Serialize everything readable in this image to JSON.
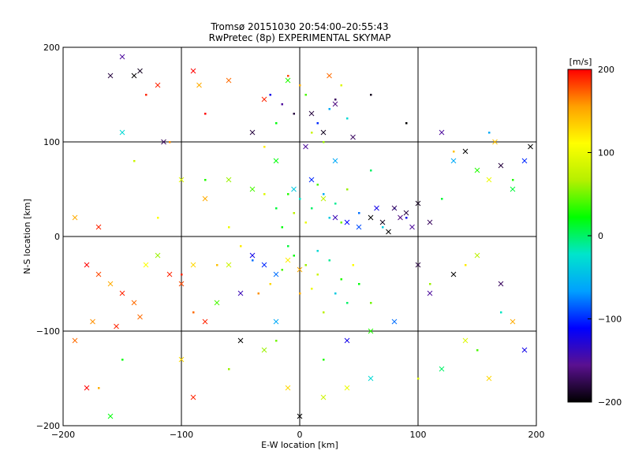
{
  "chart_data": {
    "type": "scatter",
    "title": "Tromsø 20151030 20:54:00–20:55:43",
    "subtitle": "RwPretec (8p) EXPERIMENTAL SKYMAP",
    "xlabel": "E-W location [km]",
    "ylabel": "N-S location [km]",
    "xlim": [
      -200,
      200
    ],
    "ylim": [
      -200,
      200
    ],
    "x_ticks": [
      -200,
      -100,
      0,
      100,
      200
    ],
    "y_ticks": [
      -200,
      -100,
      0,
      100,
      200
    ],
    "x_tick_labels": [
      "−200",
      "−100",
      "0",
      "100",
      "200"
    ],
    "y_tick_labels": [
      "−200",
      "−100",
      "0",
      "100",
      "200"
    ],
    "grid": true,
    "colorbar": {
      "label": "[m/s]",
      "min": -200,
      "max": 200,
      "ticks": [
        200,
        100,
        0,
        -100,
        -200
      ],
      "tick_labels": [
        "200",
        "100",
        "0",
        "−100",
        "−200"
      ],
      "colormap": [
        "#000000",
        "#5a1090",
        "#0000ff",
        "#00a0ff",
        "#00e5cc",
        "#00ff00",
        "#b5f000",
        "#ffff00",
        "#ffa000",
        "#ff0000"
      ]
    },
    "marker_types": [
      "dot",
      "cross"
    ],
    "series": [
      {
        "marker": "dot",
        "points": [
          [
            -15,
            140,
            -150
          ],
          [
            -5,
            130,
            -180
          ],
          [
            5,
            150,
            40
          ],
          [
            15,
            120,
            -100
          ],
          [
            25,
            135,
            -60
          ],
          [
            10,
            110,
            80
          ],
          [
            -20,
            120,
            20
          ],
          [
            30,
            145,
            -170
          ],
          [
            0,
            160,
            150
          ],
          [
            20,
            100,
            60
          ],
          [
            -30,
            95,
            120
          ],
          [
            40,
            125,
            -30
          ],
          [
            -10,
            170,
            180
          ],
          [
            35,
            160,
            90
          ],
          [
            -25,
            150,
            -120
          ],
          [
            -10,
            45,
            30
          ],
          [
            0,
            40,
            -20
          ],
          [
            10,
            30,
            0
          ],
          [
            20,
            45,
            -60
          ],
          [
            -5,
            25,
            70
          ],
          [
            25,
            20,
            -40
          ],
          [
            15,
            55,
            40
          ],
          [
            -20,
            30,
            10
          ],
          [
            5,
            15,
            100
          ],
          [
            30,
            35,
            -10
          ],
          [
            40,
            50,
            60
          ],
          [
            -15,
            10,
            20
          ],
          [
            35,
            15,
            50
          ],
          [
            50,
            25,
            -80
          ],
          [
            -30,
            45,
            90
          ],
          [
            -5,
            -20,
            20
          ],
          [
            5,
            -30,
            60
          ],
          [
            15,
            -40,
            80
          ],
          [
            25,
            -25,
            -10
          ],
          [
            -15,
            -35,
            40
          ],
          [
            10,
            -55,
            100
          ],
          [
            30,
            -60,
            -40
          ],
          [
            -25,
            -50,
            130
          ],
          [
            40,
            -70,
            0
          ],
          [
            20,
            -80,
            70
          ],
          [
            0,
            -60,
            150
          ],
          [
            -10,
            -10,
            10
          ],
          [
            15,
            -15,
            -30
          ],
          [
            35,
            -45,
            30
          ],
          [
            45,
            -30,
            110
          ],
          [
            -40,
            -25,
            -80
          ],
          [
            -50,
            -10,
            120
          ],
          [
            -35,
            -60,
            160
          ],
          [
            50,
            -50,
            20
          ],
          [
            60,
            -70,
            50
          ],
          [
            -60,
            10,
            100
          ],
          [
            -70,
            -30,
            140
          ],
          [
            70,
            10,
            -40
          ],
          [
            80,
            30,
            -90
          ],
          [
            90,
            20,
            -120
          ],
          [
            -80,
            60,
            30
          ],
          [
            60,
            70,
            0
          ],
          [
            -100,
            -40,
            190
          ],
          [
            -90,
            -80,
            170
          ],
          [
            110,
            -50,
            60
          ],
          [
            -120,
            20,
            110
          ],
          [
            120,
            40,
            10
          ],
          [
            130,
            90,
            140
          ],
          [
            -140,
            80,
            80
          ],
          [
            150,
            -120,
            40
          ],
          [
            -150,
            -130,
            20
          ],
          [
            100,
            -150,
            90
          ],
          [
            -60,
            -140,
            60
          ],
          [
            20,
            -130,
            30
          ],
          [
            -20,
            -110,
            50
          ],
          [
            60,
            150,
            -190
          ],
          [
            90,
            120,
            -200
          ],
          [
            -130,
            150,
            190
          ],
          [
            160,
            110,
            -60
          ],
          [
            -170,
            -160,
            150
          ],
          [
            180,
            60,
            30
          ],
          [
            -110,
            100,
            160
          ],
          [
            140,
            -30,
            120
          ],
          [
            -80,
            130,
            200
          ],
          [
            170,
            -80,
            -20
          ]
        ]
      },
      {
        "marker": "cross",
        "points": [
          [
            -160,
            170,
            -180
          ],
          [
            -150,
            190,
            -150
          ],
          [
            -140,
            170,
            -200
          ],
          [
            -135,
            175,
            -190
          ],
          [
            -120,
            160,
            190
          ],
          [
            -115,
            100,
            -170
          ],
          [
            -90,
            175,
            200
          ],
          [
            -85,
            160,
            150
          ],
          [
            -60,
            165,
            170
          ],
          [
            -40,
            110,
            -180
          ],
          [
            10,
            130,
            -180
          ],
          [
            20,
            110,
            -190
          ],
          [
            30,
            140,
            -160
          ],
          [
            45,
            105,
            -170
          ],
          [
            5,
            95,
            -150
          ],
          [
            -10,
            165,
            30
          ],
          [
            25,
            170,
            170
          ],
          [
            -30,
            145,
            190
          ],
          [
            60,
            20,
            -200
          ],
          [
            70,
            15,
            -190
          ],
          [
            80,
            30,
            -170
          ],
          [
            85,
            20,
            -160
          ],
          [
            90,
            25,
            -180
          ],
          [
            95,
            10,
            -150
          ],
          [
            100,
            35,
            -190
          ],
          [
            110,
            15,
            -170
          ],
          [
            75,
            5,
            -200
          ],
          [
            65,
            30,
            -120
          ],
          [
            30,
            20,
            -140
          ],
          [
            40,
            15,
            -110
          ],
          [
            50,
            10,
            -90
          ],
          [
            130,
            80,
            -60
          ],
          [
            140,
            90,
            -200
          ],
          [
            150,
            70,
            30
          ],
          [
            160,
            60,
            100
          ],
          [
            170,
            75,
            -180
          ],
          [
            180,
            50,
            10
          ],
          [
            190,
            80,
            -100
          ],
          [
            195,
            95,
            -200
          ],
          [
            165,
            100,
            140
          ],
          [
            120,
            110,
            -150
          ],
          [
            -180,
            -30,
            200
          ],
          [
            -170,
            -40,
            180
          ],
          [
            -160,
            -50,
            150
          ],
          [
            -150,
            -60,
            190
          ],
          [
            -140,
            -70,
            170
          ],
          [
            -130,
            -30,
            110
          ],
          [
            -120,
            -20,
            60
          ],
          [
            -110,
            -40,
            190
          ],
          [
            -100,
            -50,
            180
          ],
          [
            -90,
            -30,
            130
          ],
          [
            -175,
            -90,
            160
          ],
          [
            -155,
            -95,
            190
          ],
          [
            -135,
            -85,
            170
          ],
          [
            -190,
            20,
            150
          ],
          [
            -170,
            10,
            190
          ],
          [
            -40,
            -20,
            -120
          ],
          [
            -30,
            -30,
            -100
          ],
          [
            -20,
            -40,
            -80
          ],
          [
            -10,
            -25,
            120
          ],
          [
            0,
            -35,
            150
          ],
          [
            -60,
            -30,
            80
          ],
          [
            -50,
            -60,
            -140
          ],
          [
            -70,
            -70,
            40
          ],
          [
            -80,
            -90,
            190
          ],
          [
            -20,
            -90,
            -60
          ],
          [
            -50,
            -110,
            -200
          ],
          [
            -30,
            -120,
            60
          ],
          [
            40,
            -110,
            -120
          ],
          [
            60,
            -100,
            30
          ],
          [
            80,
            -90,
            -80
          ],
          [
            100,
            -30,
            -180
          ],
          [
            110,
            -60,
            -150
          ],
          [
            130,
            -40,
            -200
          ],
          [
            150,
            -20,
            70
          ],
          [
            170,
            -50,
            -170
          ],
          [
            180,
            -90,
            150
          ],
          [
            190,
            -120,
            -120
          ],
          [
            140,
            -110,
            90
          ],
          [
            120,
            -140,
            0
          ],
          [
            160,
            -150,
            130
          ],
          [
            -190,
            -110,
            170
          ],
          [
            -180,
            -160,
            200
          ],
          [
            -160,
            -190,
            20
          ],
          [
            -90,
            -170,
            190
          ],
          [
            -100,
            -130,
            130
          ],
          [
            -150,
            110,
            -30
          ],
          [
            -100,
            60,
            90
          ],
          [
            -80,
            40,
            150
          ],
          [
            -60,
            60,
            60
          ],
          [
            -40,
            50,
            40
          ],
          [
            0,
            -190,
            -200
          ],
          [
            20,
            -170,
            80
          ],
          [
            40,
            -160,
            100
          ],
          [
            60,
            -150,
            -30
          ],
          [
            -10,
            -160,
            130
          ],
          [
            10,
            60,
            -100
          ],
          [
            -20,
            80,
            20
          ],
          [
            30,
            80,
            -60
          ],
          [
            20,
            40,
            70
          ],
          [
            -5,
            50,
            -40
          ]
        ]
      }
    ]
  }
}
